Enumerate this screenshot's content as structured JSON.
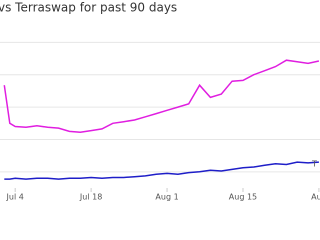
{
  "chart_data": {
    "type": "line",
    "title": "vs Terraswap for past 90 days",
    "x": [
      -2,
      -1,
      0,
      2,
      4,
      6,
      8,
      10,
      12,
      14,
      16,
      18,
      20,
      22,
      24,
      26,
      28,
      30,
      32,
      34,
      36,
      38,
      40,
      42,
      44,
      46,
      48,
      50,
      52,
      54,
      56
    ],
    "series": [
      {
        "color": "#e01ee0",
        "values": [
          107,
          60,
          56,
          55,
          57,
          55,
          54,
          50,
          49,
          51,
          53,
          60,
          62,
          64,
          68,
          72,
          76,
          80,
          84,
          107,
          92,
          96,
          112,
          113,
          120,
          125,
          130,
          138,
          136,
          134,
          137
        ]
      },
      {
        "color": "#1e1ec8",
        "values": [
          -9,
          -9,
          -8,
          -9,
          -8,
          -8,
          -9,
          -8,
          -8,
          -7,
          -8,
          -7,
          -7,
          -6,
          -5,
          -3,
          -2,
          -3,
          -1,
          0,
          2,
          1,
          3,
          5,
          6,
          8,
          10,
          9,
          12,
          11,
          12
        ]
      }
    ],
    "xlim": [
      -2.8,
      56.2
    ],
    "xticks": [
      {
        "value": 0,
        "label": "Jul 4"
      },
      {
        "value": 14,
        "label": "Jul 18"
      },
      {
        "value": 28,
        "label": "Aug 1"
      },
      {
        "value": 42,
        "label": "Aug 15"
      },
      {
        "value": 56,
        "label": "Aug"
      }
    ],
    "ylim": [
      -20,
      200
    ],
    "yticks": [
      0,
      40,
      80,
      120,
      160
    ],
    "grid": true,
    "annotation": "T"
  }
}
